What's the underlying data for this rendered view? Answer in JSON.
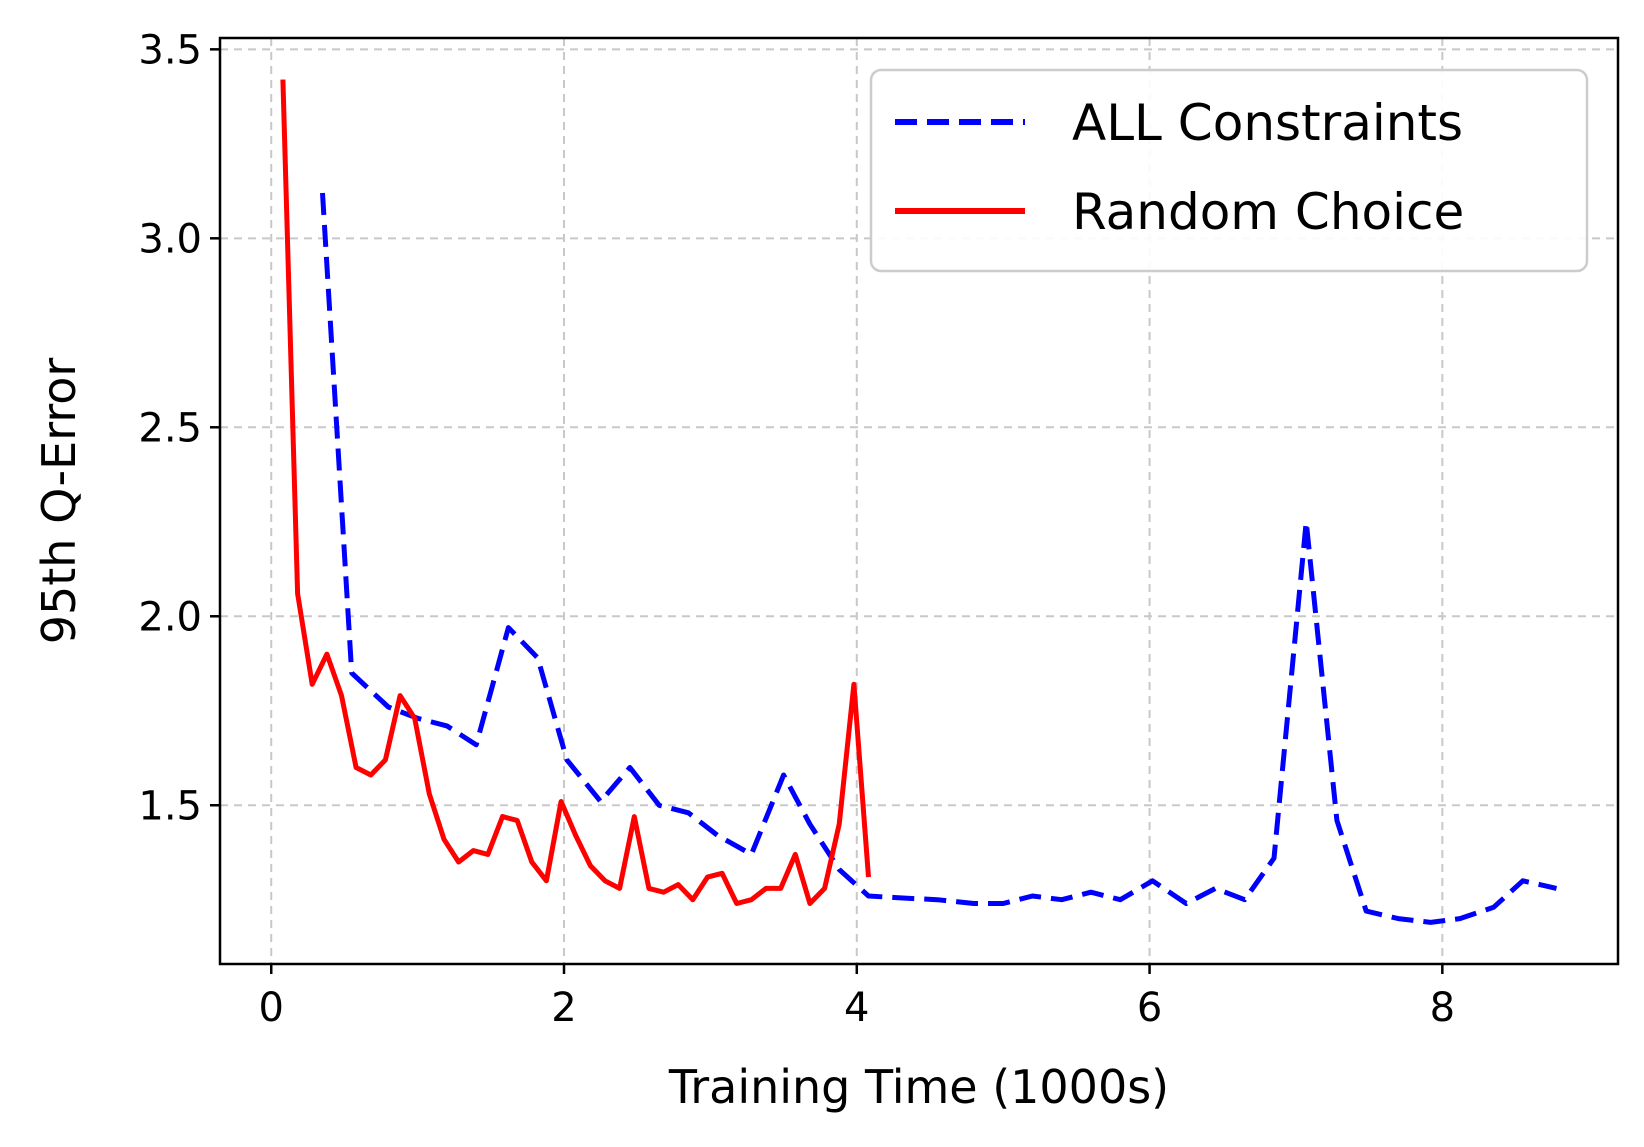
{
  "chart_data": {
    "type": "line",
    "xlabel": "Training Time (1000s)",
    "ylabel": "95th Q-Error",
    "xlim": [
      -0.35,
      9.2
    ],
    "ylim": [
      1.08,
      3.53
    ],
    "xticks": [
      0,
      2,
      4,
      6,
      8
    ],
    "yticks": [
      1.5,
      2.0,
      2.5,
      3.0,
      3.5
    ],
    "xtick_labels": [
      "0",
      "2",
      "4",
      "6",
      "8"
    ],
    "ytick_labels": [
      "1.5",
      "2.0",
      "2.5",
      "3.0",
      "3.5"
    ],
    "grid": true,
    "legend_position": "top-right",
    "series": [
      {
        "name": "ALL Constraints",
        "color": "#0000ff",
        "style": "dashed",
        "x": [
          0.35,
          0.55,
          0.8,
          1.0,
          1.2,
          1.4,
          1.62,
          1.82,
          2.02,
          2.25,
          2.45,
          2.65,
          2.85,
          3.05,
          3.28,
          3.5,
          3.68,
          3.88,
          4.08,
          4.3,
          4.55,
          4.8,
          5.0,
          5.2,
          5.4,
          5.6,
          5.8,
          6.02,
          6.25,
          6.45,
          6.65,
          6.85,
          7.07,
          7.28,
          7.48,
          7.7,
          7.92,
          8.12,
          8.35,
          8.55,
          8.78
        ],
        "y": [
          3.12,
          1.85,
          1.76,
          1.73,
          1.71,
          1.66,
          1.97,
          1.89,
          1.62,
          1.51,
          1.6,
          1.5,
          1.48,
          1.42,
          1.37,
          1.58,
          1.45,
          1.33,
          1.26,
          1.255,
          1.25,
          1.24,
          1.24,
          1.26,
          1.25,
          1.27,
          1.25,
          1.3,
          1.24,
          1.28,
          1.25,
          1.36,
          2.25,
          1.46,
          1.22,
          1.2,
          1.19,
          1.2,
          1.23,
          1.3,
          1.28
        ]
      },
      {
        "name": "Random Choice",
        "color": "#ff0000",
        "style": "solid",
        "x": [
          0.08,
          0.18,
          0.28,
          0.38,
          0.48,
          0.58,
          0.68,
          0.78,
          0.88,
          0.98,
          1.08,
          1.18,
          1.28,
          1.38,
          1.48,
          1.58,
          1.68,
          1.78,
          1.88,
          1.98,
          2.08,
          2.18,
          2.28,
          2.38,
          2.48,
          2.58,
          2.68,
          2.78,
          2.88,
          2.98,
          3.08,
          3.18,
          3.28,
          3.38,
          3.48,
          3.58,
          3.68,
          3.78,
          3.88,
          3.98,
          4.08
        ],
        "y": [
          3.42,
          2.06,
          1.82,
          1.9,
          1.79,
          1.6,
          1.58,
          1.62,
          1.79,
          1.73,
          1.53,
          1.41,
          1.35,
          1.38,
          1.37,
          1.47,
          1.46,
          1.35,
          1.3,
          1.51,
          1.42,
          1.34,
          1.3,
          1.28,
          1.47,
          1.28,
          1.27,
          1.29,
          1.25,
          1.31,
          1.32,
          1.24,
          1.25,
          1.28,
          1.28,
          1.37,
          1.24,
          1.28,
          1.45,
          1.82,
          1.31
        ]
      }
    ]
  }
}
